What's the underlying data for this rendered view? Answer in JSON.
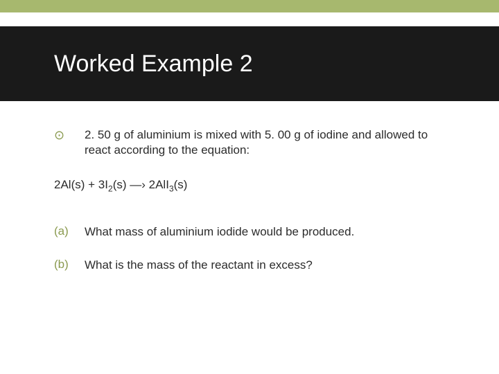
{
  "colors": {
    "stripe": "#a7b86e",
    "title_bg": "#1a1a1a",
    "title_fg": "#ffffff",
    "accent": "#8a9a4f",
    "body_text": "#2b2b2b",
    "page_bg": "#ffffff"
  },
  "title": "Worked Example 2",
  "intro": "2. 50 g of aluminium is mixed with 5. 00 g of iodine and allowed to react according to the equation:",
  "equation": {
    "lhs_1_coef": "2",
    "lhs_1_body": "Al(s)",
    "plus": " + ",
    "lhs_2_coef": "3",
    "lhs_2_base": "I",
    "lhs_2_sub": "2",
    "lhs_2_state": "(s)",
    "arrow": " —› ",
    "rhs_coef": "2",
    "rhs_base": "AlI",
    "rhs_sub": "3",
    "rhs_state": "(s)"
  },
  "questions": [
    {
      "label": "(a)",
      "text": "What mass of aluminium iodide would be produced."
    },
    {
      "label": "(b)",
      "text": "What is the mass of the reactant in excess?"
    }
  ],
  "bullet_glyph": "⊙"
}
